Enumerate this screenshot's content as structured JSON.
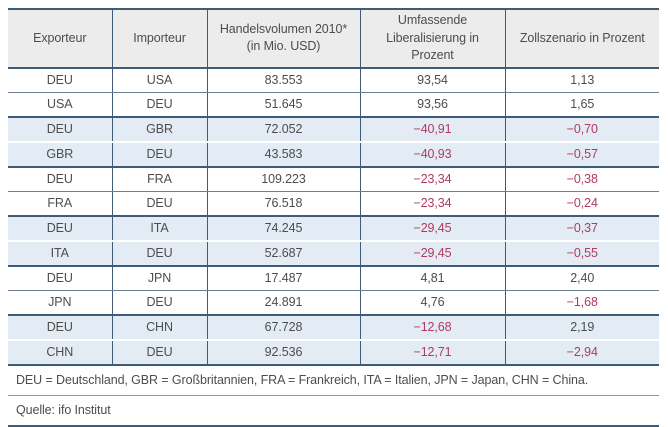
{
  "table": {
    "columns": [
      "Exporteur",
      "Importeur",
      "Handelsvolumen 2010*\n(in Mio. USD)",
      "Umfassende\nLiberalisierung in Prozent",
      "Zollszenario in Prozent"
    ],
    "rows": [
      {
        "cells": [
          "DEU",
          "USA",
          "83.553",
          "93,54",
          "1,13"
        ]
      },
      {
        "cells": [
          "USA",
          "DEU",
          "51.645",
          "93,56",
          "1,65"
        ]
      },
      {
        "cells": [
          "DEU",
          "GBR",
          "72.052",
          "−40,91",
          "−0,70"
        ]
      },
      {
        "cells": [
          "GBR",
          "DEU",
          "43.583",
          "−40,93",
          "−0,57"
        ]
      },
      {
        "cells": [
          "DEU",
          "FRA",
          "109.223",
          "−23,34",
          "−0,38"
        ]
      },
      {
        "cells": [
          "FRA",
          "DEU",
          "76.518",
          "−23,34",
          "−0,24"
        ]
      },
      {
        "cells": [
          "DEU",
          "ITA",
          "74.245",
          "−29,45",
          "−0,37"
        ]
      },
      {
        "cells": [
          "ITA",
          "DEU",
          "52.687",
          "−29,45",
          "−0,55"
        ]
      },
      {
        "cells": [
          "DEU",
          "JPN",
          "17.487",
          "4,81",
          "2,40"
        ]
      },
      {
        "cells": [
          "JPN",
          "DEU",
          "24.891",
          "4,76",
          "−1,68"
        ]
      },
      {
        "cells": [
          "DEU",
          "CHN",
          "67.728",
          "−12,68",
          "2,19"
        ]
      },
      {
        "cells": [
          "CHN",
          "DEU",
          "92.536",
          "−12,71",
          "−2,94"
        ]
      }
    ],
    "footnote": "DEU = Deutschland, GBR = Großbritannien, FRA = Frankreich, ITA = Italien, JPN = Japan, CHN = China.",
    "source": "Quelle: ifo Institut"
  },
  "colors": {
    "rule": "#3e5c77",
    "header_bg": "#ececec",
    "row_alt_bg": "#e3ecf4",
    "text": "#4d4d4d",
    "negative_text": "#b13a5e"
  }
}
